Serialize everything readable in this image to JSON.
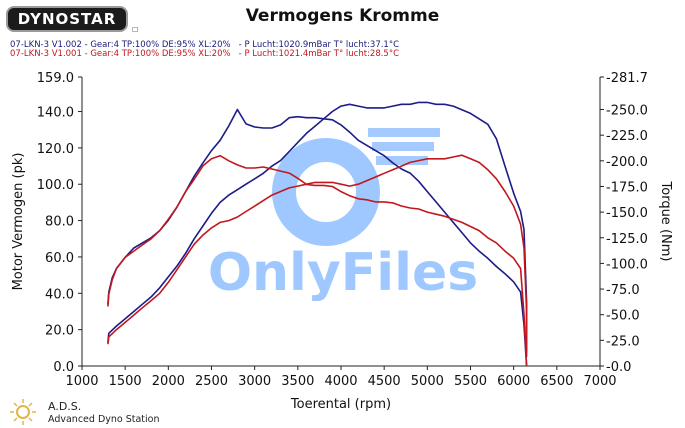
{
  "header": {
    "logo_text": "DYNOSTAR",
    "checkbox_glyph": "☐",
    "title": "Vermogens Kromme",
    "runs": [
      {
        "text": "07-LKN-3 V1.002 - Gear:4 TP:100% DE:95% XL:20%   - P Lucht:1020.9mBar T° lucht:37.1°C",
        "color": "#1a1a7a"
      },
      {
        "text": "07-LKN-3 V1.001 - Gear:4 TP:100% DE:95% XL:20%   - P Lucht:1021.4mBar T° lucht:28.5°C",
        "color": "#c2171e"
      }
    ]
  },
  "watermark": {
    "text": "OnlyFiles"
  },
  "footer": {
    "ads_title": "A.D.S.",
    "ads_sub": "Advanced Dyno Station",
    "logo_icon": "ads-sun-icon"
  },
  "chart_data": {
    "type": "line",
    "title": "Vermogens Kromme",
    "xlabel": "Toerental (rpm)",
    "ylabel": "Motor Vermogen (pk)",
    "y2label": "Torque (Nm)",
    "xlim": [
      1000,
      7000
    ],
    "ylim": [
      0,
      159
    ],
    "y2lim": [
      0,
      281.7
    ],
    "x_ticks": [
      "1000",
      "1500",
      "2000",
      "2500",
      "3000",
      "3500",
      "4000",
      "4500",
      "5000",
      "5500",
      "6000",
      "6500",
      "7000"
    ],
    "y_ticks": [
      "0.0",
      "20.0",
      "40.0",
      "60.0",
      "80.0",
      "100.0",
      "120.0",
      "140.0",
      "159.0"
    ],
    "y2_ticks": [
      "-0.0",
      "-25.0",
      "-50.0",
      "-75.0",
      "-100.0",
      "-125.0",
      "-150.0",
      "-175.0",
      "-200.0",
      "-225.0",
      "-250.0",
      "-281.7"
    ],
    "grid": false,
    "series": [
      {
        "run": "07-LKN-3 V1.002",
        "quantity": "power",
        "axis": "left",
        "color": "#1c1c8a",
        "x": [
          1300,
          1310,
          1400,
          1500,
          1600,
          1700,
          1800,
          1900,
          2000,
          2100,
          2200,
          2300,
          2400,
          2500,
          2600,
          2700,
          2800,
          2900,
          3000,
          3100,
          3200,
          3300,
          3400,
          3500,
          3600,
          3700,
          3800,
          3900,
          4000,
          4100,
          4200,
          4300,
          4400,
          4500,
          4600,
          4700,
          4800,
          4900,
          5000,
          5100,
          5200,
          5300,
          5400,
          5500,
          5600,
          5700,
          5800,
          5900,
          6000,
          6080,
          6120,
          6150,
          6150
        ],
        "y": [
          13,
          18,
          22,
          26,
          30,
          34,
          38,
          43,
          49,
          55,
          62,
          70,
          77,
          84,
          90,
          94,
          97,
          100,
          103,
          106,
          110,
          113,
          118,
          123,
          128,
          132,
          136,
          140,
          143,
          144,
          143,
          142,
          142,
          142,
          143,
          144,
          144,
          145,
          145,
          144,
          144,
          143,
          141,
          139,
          136,
          133,
          125,
          110,
          95,
          85,
          75,
          35,
          8
        ]
      },
      {
        "run": "07-LKN-3 V1.002",
        "quantity": "torque",
        "axis": "right",
        "color": "#1c1c8a",
        "x": [
          1300,
          1310,
          1350,
          1400,
          1500,
          1600,
          1700,
          1800,
          1900,
          2000,
          2100,
          2200,
          2300,
          2400,
          2500,
          2600,
          2700,
          2800,
          2900,
          3000,
          3100,
          3200,
          3300,
          3400,
          3500,
          3600,
          3700,
          3800,
          3900,
          4000,
          4100,
          4200,
          4300,
          4400,
          4500,
          4600,
          4700,
          4800,
          4900,
          5000,
          5100,
          5200,
          5300,
          5400,
          5500,
          5600,
          5700,
          5800,
          5900,
          6000,
          6080,
          6120,
          6150
        ],
        "y": [
          60,
          72,
          86,
          95,
          106,
          115,
          120,
          125,
          132,
          142,
          155,
          170,
          185,
          198,
          210,
          220,
          234,
          250,
          236,
          233,
          232,
          232,
          235,
          242,
          243,
          242,
          242,
          241,
          240,
          235,
          228,
          220,
          215,
          210,
          205,
          198,
          192,
          188,
          180,
          170,
          160,
          150,
          140,
          130,
          120,
          112,
          105,
          97,
          90,
          82,
          72,
          40,
          0
        ]
      },
      {
        "run": "07-LKN-3 V1.001",
        "quantity": "power",
        "axis": "left",
        "color": "#c2171e",
        "x": [
          1300,
          1310,
          1400,
          1500,
          1600,
          1700,
          1800,
          1900,
          2000,
          2100,
          2200,
          2300,
          2400,
          2500,
          2600,
          2700,
          2800,
          2900,
          3000,
          3100,
          3200,
          3300,
          3400,
          3500,
          3600,
          3700,
          3800,
          3900,
          4000,
          4100,
          4200,
          4300,
          4400,
          4500,
          4600,
          4700,
          4800,
          4900,
          5000,
          5100,
          5200,
          5300,
          5400,
          5500,
          5600,
          5700,
          5800,
          5900,
          6000,
          6080,
          6120,
          6150,
          6150
        ],
        "y": [
          12,
          16,
          20,
          24,
          28,
          32,
          36,
          40,
          46,
          53,
          60,
          67,
          72,
          76,
          79,
          80,
          82,
          85,
          88,
          91,
          94,
          96,
          98,
          99,
          100,
          101,
          101,
          101,
          100,
          99,
          100,
          102,
          104,
          106,
          108,
          110,
          112,
          113,
          114,
          114,
          114,
          115,
          116,
          114,
          112,
          108,
          103,
          96,
          88,
          78,
          65,
          30,
          5
        ]
      },
      {
        "run": "07-LKN-3 V1.001",
        "quantity": "torque",
        "axis": "right",
        "color": "#c2171e",
        "x": [
          1300,
          1310,
          1350,
          1400,
          1500,
          1600,
          1700,
          1800,
          1900,
          2000,
          2100,
          2200,
          2300,
          2400,
          2500,
          2600,
          2700,
          2800,
          2900,
          3000,
          3100,
          3200,
          3300,
          3400,
          3500,
          3600,
          3700,
          3800,
          3900,
          4000,
          4100,
          4200,
          4300,
          4400,
          4500,
          4600,
          4700,
          4800,
          4900,
          5000,
          5100,
          5200,
          5300,
          5400,
          5500,
          5600,
          5700,
          5800,
          5900,
          6000,
          6080,
          6120,
          6150
        ],
        "y": [
          58,
          70,
          84,
          95,
          106,
          112,
          118,
          124,
          132,
          143,
          155,
          170,
          182,
          195,
          202,
          205,
          200,
          196,
          193,
          193,
          194,
          192,
          190,
          188,
          183,
          177,
          176,
          176,
          175,
          170,
          166,
          163,
          162,
          160,
          160,
          159,
          156,
          154,
          153,
          150,
          148,
          146,
          143,
          140,
          136,
          132,
          125,
          120,
          112,
          105,
          95,
          50,
          0
        ]
      }
    ]
  }
}
